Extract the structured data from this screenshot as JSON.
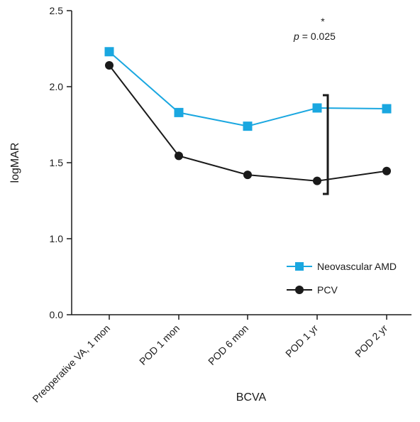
{
  "chart_data": {
    "type": "line",
    "title": "",
    "xlabel": "BCVA",
    "ylabel": "logMAR",
    "categories": [
      "Preoperative VA, 1 mon",
      "POD 1 mon",
      "POD 6 mon",
      "POD 1 yr",
      "POD 2 yr"
    ],
    "y_break_between": [
      0.0,
      1.0
    ],
    "y_ticks": [
      "0.0",
      "1.0",
      "1.5",
      "2.0",
      "2.5"
    ],
    "series": [
      {
        "name": "Neovascular AMD",
        "marker": "square",
        "color": "#1aa7e0",
        "values": [
          2.23,
          1.83,
          1.74,
          1.86,
          1.855
        ]
      },
      {
        "name": "PCV",
        "marker": "circle",
        "color": "#1a1a1a",
        "values": [
          2.14,
          1.545,
          1.42,
          1.38,
          1.445
        ]
      }
    ],
    "legend_position": "lower-right",
    "grid": false,
    "annotation": {
      "star": "*",
      "p_label": "p",
      "p_value": "= 0.025",
      "category": "POD 1 yr"
    }
  }
}
